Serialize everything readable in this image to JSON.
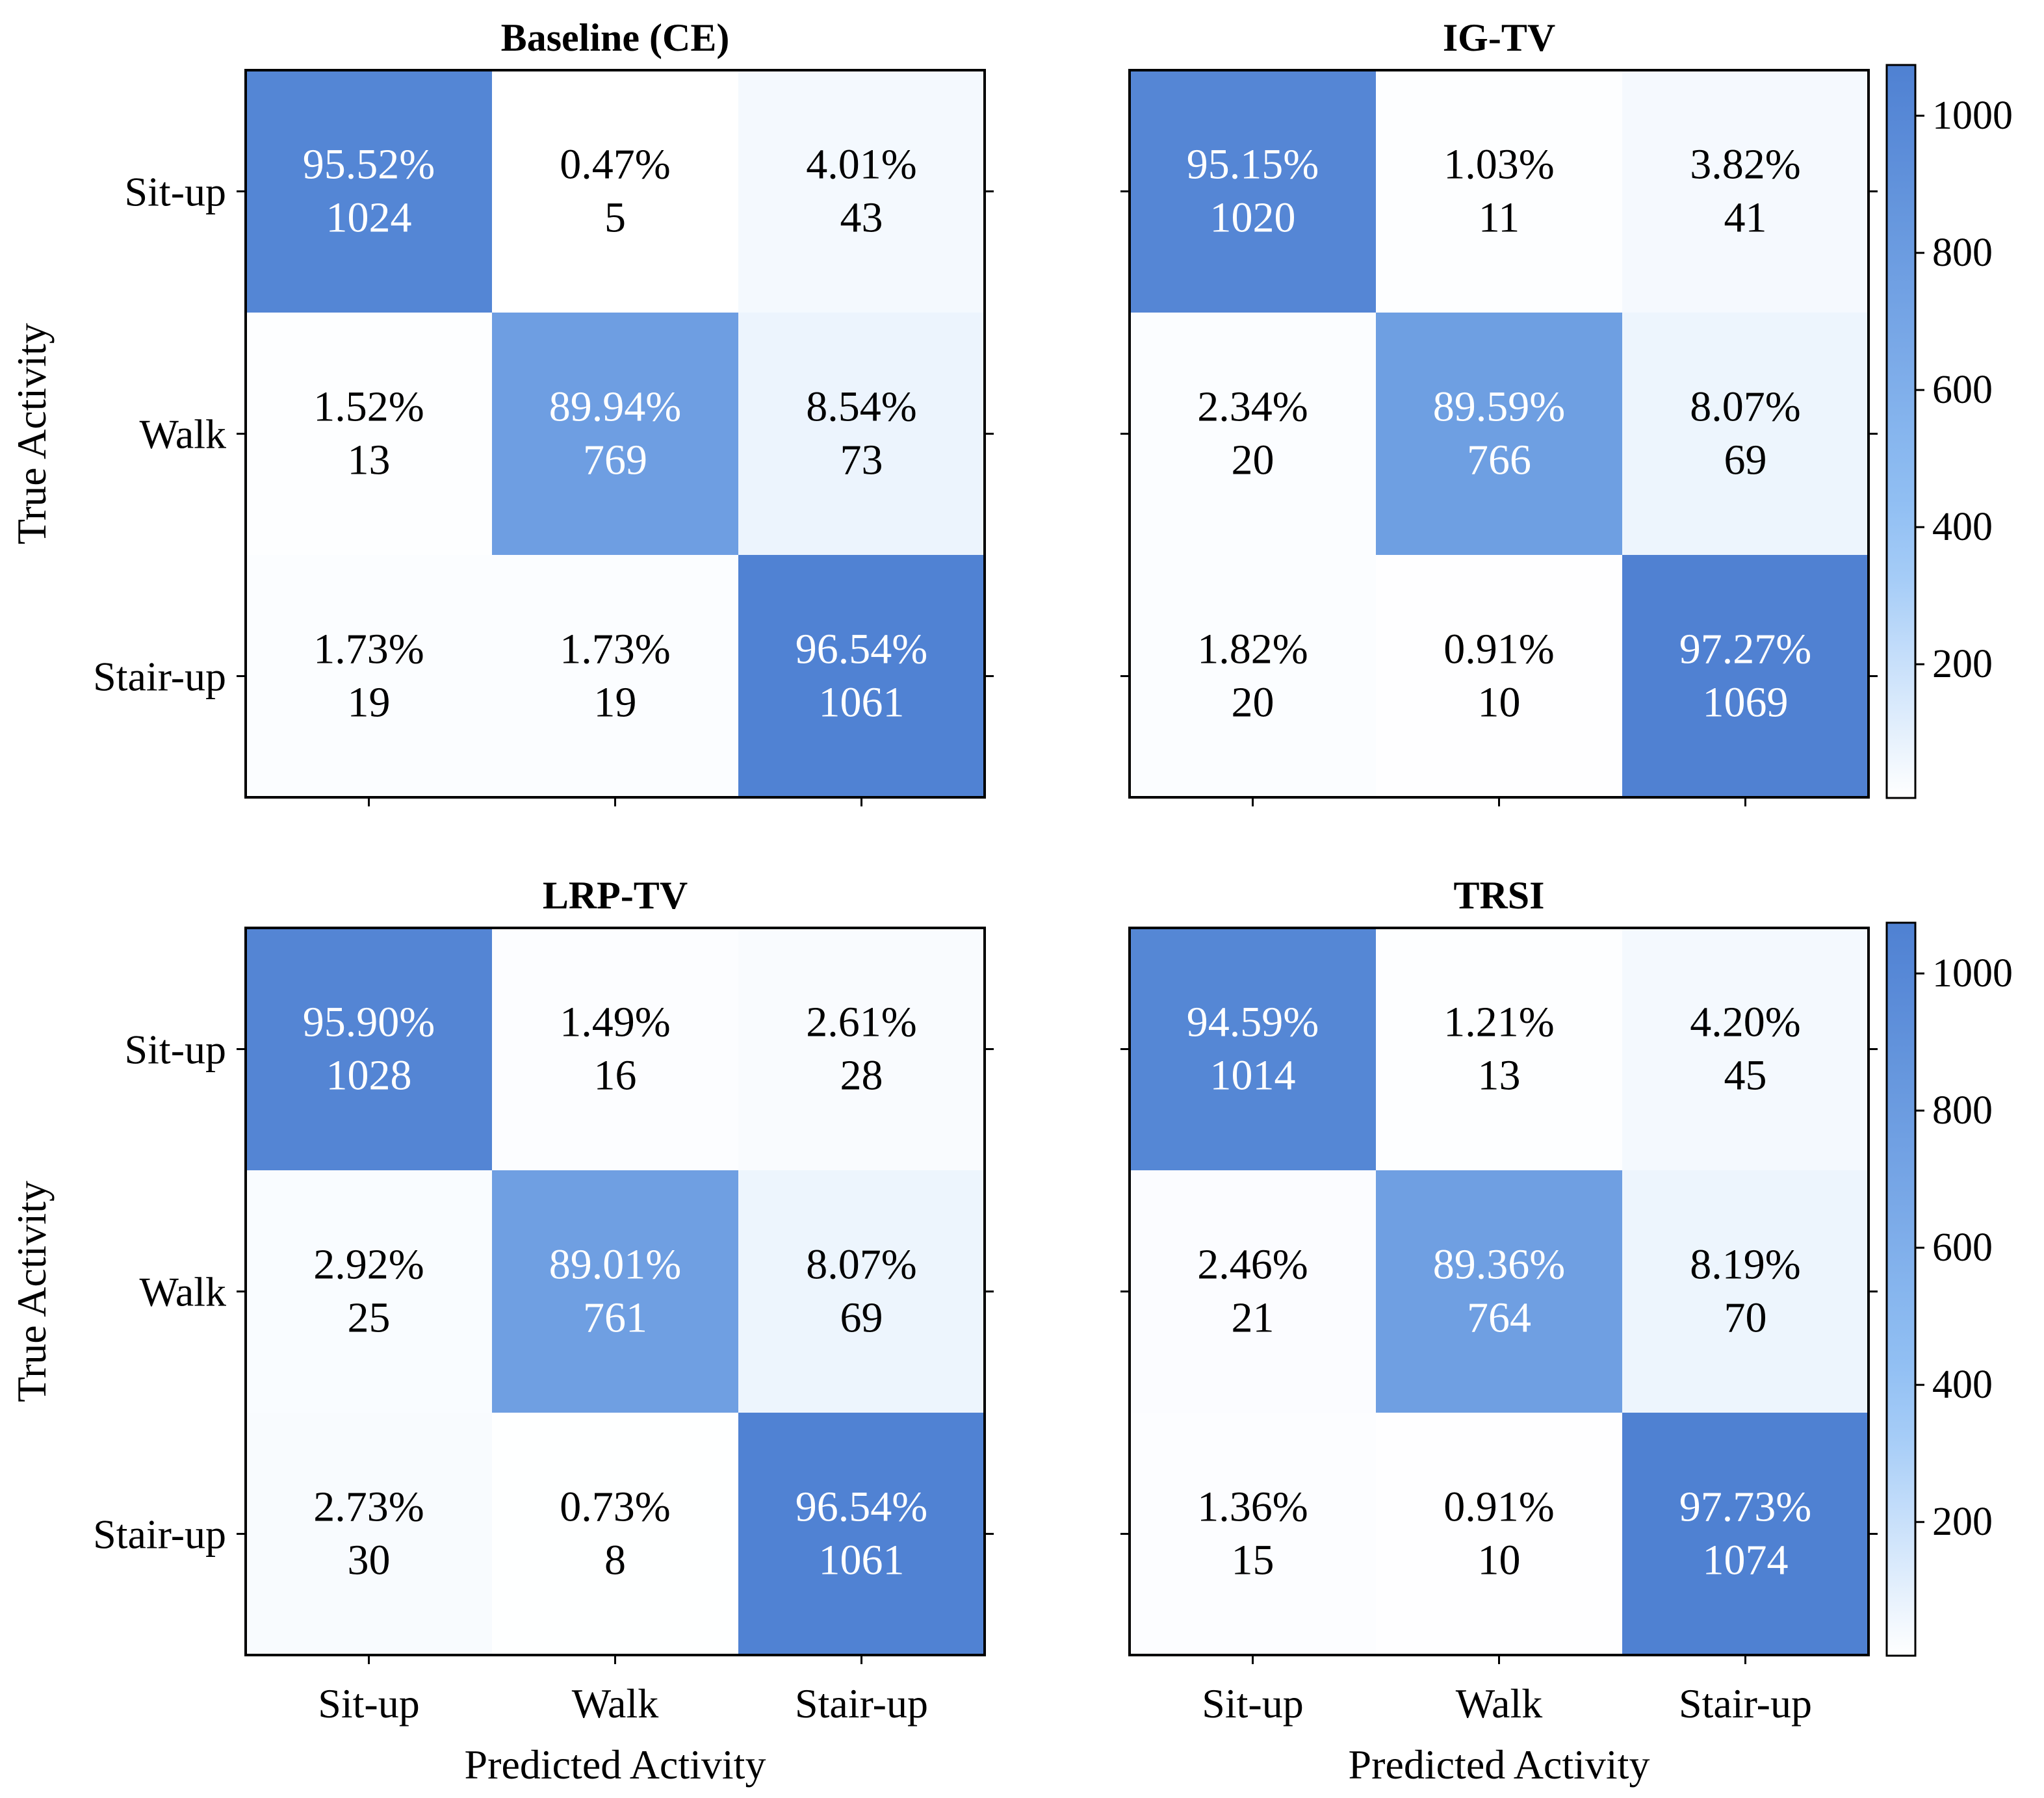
{
  "chart_data": [
    {
      "type": "heatmap",
      "title": "Baseline (CE)",
      "xlabel": "",
      "ylabel": "True Activity",
      "x_tick_labels": [
        "",
        "",
        ""
      ],
      "y_tick_labels": [
        "Sit-up",
        "Walk",
        "Stair-up"
      ],
      "cells": [
        [
          {
            "pct": "95.52%",
            "count": 1024
          },
          {
            "pct": "0.47%",
            "count": 5
          },
          {
            "pct": "4.01%",
            "count": 43
          }
        ],
        [
          {
            "pct": "1.52%",
            "count": 13
          },
          {
            "pct": "89.94%",
            "count": 769
          },
          {
            "pct": "8.54%",
            "count": 73
          }
        ],
        [
          {
            "pct": "1.73%",
            "count": 19
          },
          {
            "pct": "1.73%",
            "count": 19
          },
          {
            "pct": "96.54%",
            "count": 1061
          }
        ]
      ]
    },
    {
      "type": "heatmap",
      "title": "IG-TV",
      "xlabel": "",
      "ylabel": "",
      "x_tick_labels": [
        "",
        "",
        ""
      ],
      "y_tick_labels": [
        "",
        "",
        ""
      ],
      "cells": [
        [
          {
            "pct": "95.15%",
            "count": 1020
          },
          {
            "pct": "1.03%",
            "count": 11
          },
          {
            "pct": "3.82%",
            "count": 41
          }
        ],
        [
          {
            "pct": "2.34%",
            "count": 20
          },
          {
            "pct": "89.59%",
            "count": 766
          },
          {
            "pct": "8.07%",
            "count": 69
          }
        ],
        [
          {
            "pct": "1.82%",
            "count": 20
          },
          {
            "pct": "0.91%",
            "count": 10
          },
          {
            "pct": "97.27%",
            "count": 1069
          }
        ]
      ],
      "colorbar": {
        "ticks": [
          "200",
          "400",
          "600",
          "800",
          "1000"
        ]
      }
    },
    {
      "type": "heatmap",
      "title": "LRP-TV",
      "xlabel": "Predicted Activity",
      "ylabel": "True Activity",
      "x_tick_labels": [
        "Sit-up",
        "Walk",
        "Stair-up"
      ],
      "y_tick_labels": [
        "Sit-up",
        "Walk",
        "Stair-up"
      ],
      "cells": [
        [
          {
            "pct": "95.90%",
            "count": 1028
          },
          {
            "pct": "1.49%",
            "count": 16
          },
          {
            "pct": "2.61%",
            "count": 28
          }
        ],
        [
          {
            "pct": "2.92%",
            "count": 25
          },
          {
            "pct": "89.01%",
            "count": 761
          },
          {
            "pct": "8.07%",
            "count": 69
          }
        ],
        [
          {
            "pct": "2.73%",
            "count": 30
          },
          {
            "pct": "0.73%",
            "count": 8
          },
          {
            "pct": "96.54%",
            "count": 1061
          }
        ]
      ]
    },
    {
      "type": "heatmap",
      "title": "TRSI",
      "xlabel": "Predicted Activity",
      "ylabel": "",
      "x_tick_labels": [
        "Sit-up",
        "Walk",
        "Stair-up"
      ],
      "y_tick_labels": [
        "",
        "",
        ""
      ],
      "cells": [
        [
          {
            "pct": "94.59%",
            "count": 1014
          },
          {
            "pct": "1.21%",
            "count": 13
          },
          {
            "pct": "4.20%",
            "count": 45
          }
        ],
        [
          {
            "pct": "2.46%",
            "count": 21
          },
          {
            "pct": "89.36%",
            "count": 764
          },
          {
            "pct": "8.19%",
            "count": 70
          }
        ],
        [
          {
            "pct": "1.36%",
            "count": 15
          },
          {
            "pct": "0.91%",
            "count": 10
          },
          {
            "pct": "97.73%",
            "count": 1074
          }
        ]
      ],
      "colorbar": {
        "ticks": [
          "200",
          "400",
          "600",
          "800",
          "1000"
        ]
      }
    }
  ],
  "colormap": {
    "low": "#ffffff",
    "high": "#4f81d2",
    "vmin": 5,
    "vmax": 1074
  },
  "text_colors": {
    "dark_cell": "#ffffff",
    "light_cell": "#000000"
  }
}
